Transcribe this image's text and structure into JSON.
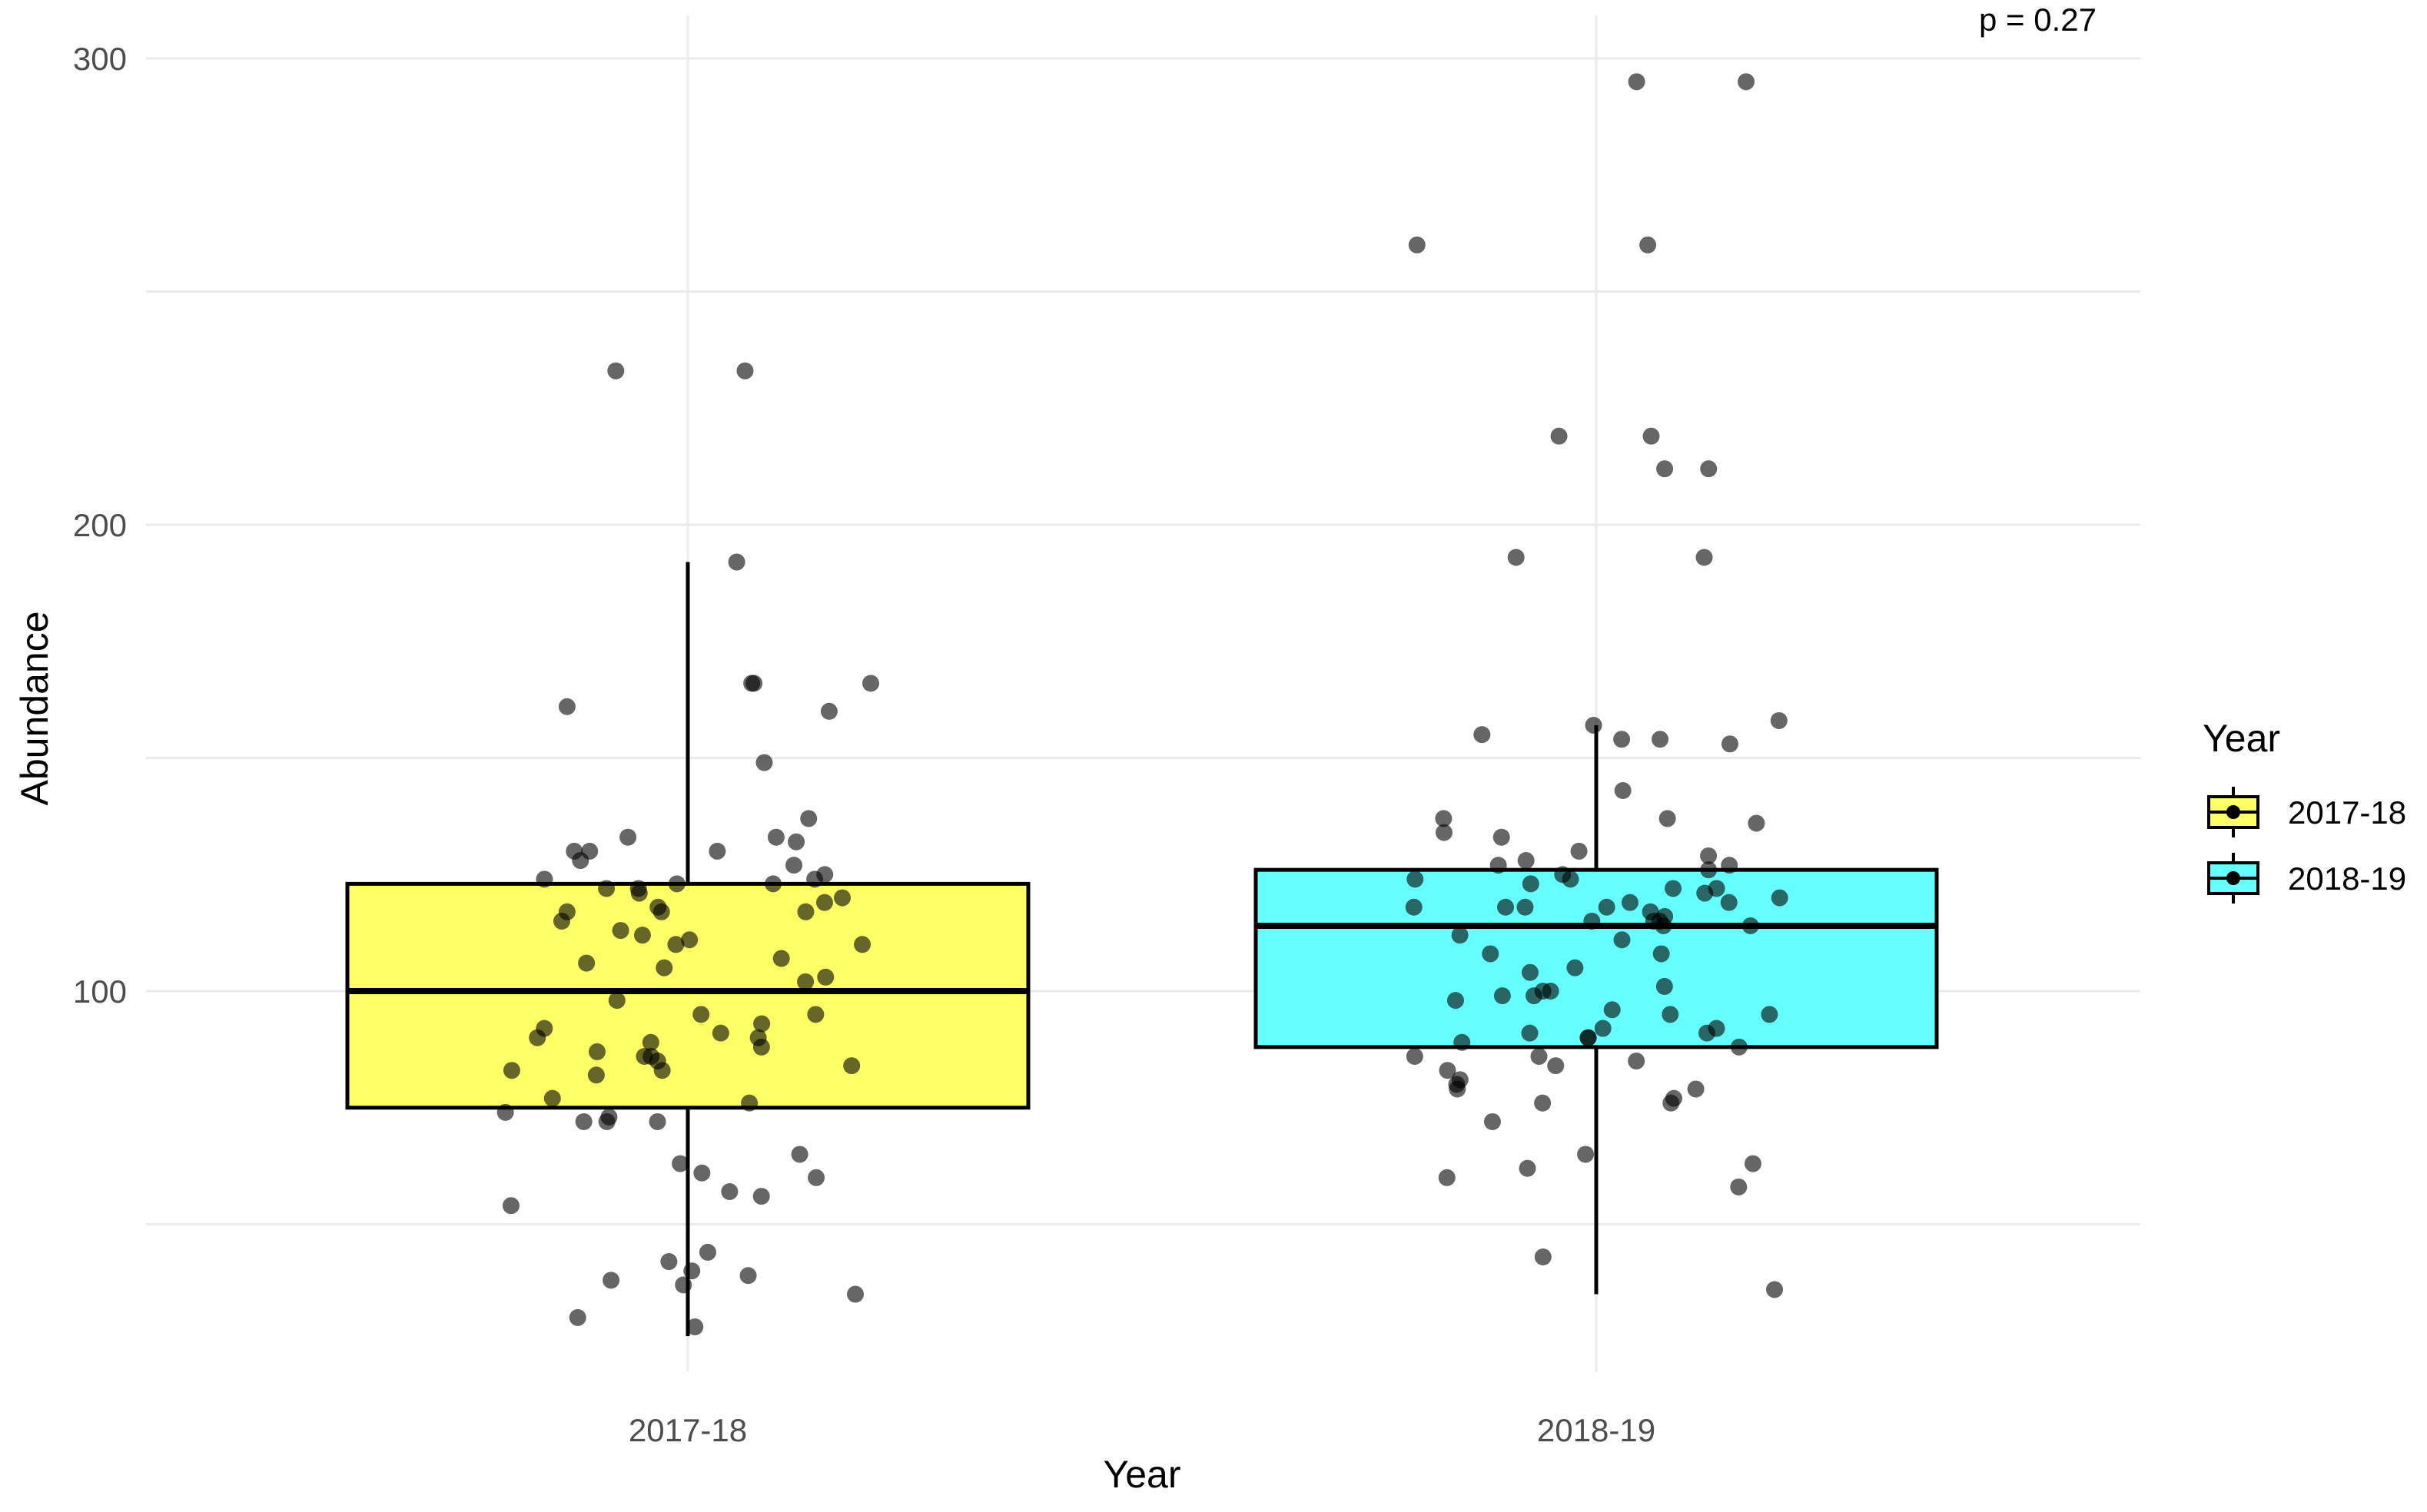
{
  "chart_data": {
    "type": "box",
    "title": "",
    "xlabel": "Year",
    "ylabel": "Abundance",
    "categories": [
      "2017-18",
      "2018-19"
    ],
    "yticks": [
      "100",
      "200",
      "300"
    ],
    "ylim": [
      15,
      308
    ],
    "grid": true,
    "annotation": "p = 0.27",
    "legend": {
      "title": "Year",
      "position": "right",
      "entries": [
        {
          "label": "2017-18",
          "color": "#FFFF66"
        },
        {
          "label": "2018-19",
          "color": "#66FFFF"
        }
      ]
    },
    "boxes": [
      {
        "category": "2017-18",
        "color": "#FFFF66",
        "whisker_low": 26,
        "q1": 75,
        "median": 100,
        "q3": 123,
        "whisker_high": 192
      },
      {
        "category": "2018-19",
        "color": "#66FFFF",
        "whisker_low": 35,
        "q1": 88,
        "median": 114,
        "q3": 126,
        "whisker_high": 157
      }
    ],
    "points": [
      {
        "category": "2017-18",
        "values": [
          233,
          233,
          192,
          166,
          166,
          166,
          161,
          160,
          149,
          137,
          133,
          133,
          132,
          130,
          130,
          130,
          128,
          127,
          125,
          124,
          124,
          123,
          123,
          122,
          122,
          121,
          120,
          119,
          118,
          117,
          117,
          117,
          115,
          113,
          112,
          111,
          110,
          110,
          107,
          106,
          105,
          103,
          102,
          98,
          95,
          95,
          93,
          92,
          91,
          90,
          90,
          89,
          88,
          87,
          86,
          86,
          85,
          84,
          83,
          83,
          82,
          77,
          76,
          74,
          73,
          72,
          72,
          72,
          65,
          63,
          61,
          60,
          57,
          56,
          54,
          44,
          42,
          40,
          39,
          38,
          37,
          35,
          30,
          28
        ]
      },
      {
        "category": "2018-19",
        "values": [
          295,
          295,
          260,
          260,
          219,
          219,
          212,
          212,
          193,
          193,
          158,
          157,
          155,
          154,
          154,
          153,
          143,
          137,
          137,
          136,
          134,
          133,
          130,
          129,
          128,
          127,
          127,
          126,
          125,
          124,
          124,
          123,
          122,
          122,
          121,
          120,
          119,
          119,
          118,
          118,
          118,
          118,
          117,
          116,
          115,
          115,
          115,
          114,
          114,
          112,
          111,
          108,
          108,
          105,
          104,
          101,
          100,
          100,
          99,
          99,
          98,
          96,
          95,
          95,
          92,
          92,
          91,
          91,
          90,
          90,
          89,
          88,
          86,
          86,
          85,
          84,
          83,
          81,
          80,
          79,
          79,
          77,
          76,
          76,
          72,
          65,
          63,
          62,
          60,
          58,
          43,
          36
        ]
      }
    ]
  }
}
